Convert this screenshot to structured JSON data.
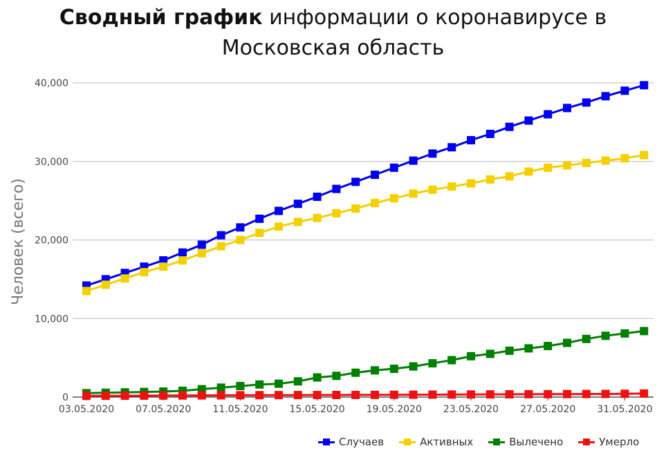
{
  "title": {
    "bold": "Сводный график",
    "line1_rest": "информации о коронавирусе в",
    "line2": "Московская область"
  },
  "chart_data": {
    "type": "line",
    "ylabel": "Человек (всего)",
    "ylim": [
      0,
      40000
    ],
    "yticks": [
      0,
      10000,
      20000,
      30000,
      40000
    ],
    "ytick_labels": [
      "0",
      "10,000",
      "20,000",
      "30,000",
      "40,000"
    ],
    "xtick_labels": [
      "03.05.2020",
      "07.05.2020",
      "11.05.2020",
      "15.05.2020",
      "19.05.2020",
      "23.05.2020",
      "27.05.2020",
      "31.05.2020"
    ],
    "x": [
      "03.05.2020",
      "04.05.2020",
      "05.05.2020",
      "06.05.2020",
      "07.05.2020",
      "08.05.2020",
      "09.05.2020",
      "10.05.2020",
      "11.05.2020",
      "12.05.2020",
      "13.05.2020",
      "14.05.2020",
      "15.05.2020",
      "16.05.2020",
      "17.05.2020",
      "18.05.2020",
      "19.05.2020",
      "20.05.2020",
      "21.05.2020",
      "22.05.2020",
      "23.05.2020",
      "24.05.2020",
      "25.05.2020",
      "26.05.2020",
      "27.05.2020",
      "28.05.2020",
      "29.05.2020",
      "30.05.2020",
      "31.05.2020",
      "01.06.2020"
    ],
    "grid": true,
    "legend_position": "bottom-right",
    "series": [
      {
        "name": "Случаев",
        "color": "#0000ee",
        "values": [
          14200,
          15000,
          15800,
          16600,
          17400,
          18400,
          19400,
          20600,
          21600,
          22700,
          23700,
          24600,
          25500,
          26500,
          27400,
          28300,
          29200,
          30100,
          31000,
          31800,
          32700,
          33500,
          34400,
          35200,
          36000,
          36800,
          37500,
          38300,
          39000,
          39700
        ]
      },
      {
        "name": "Активных",
        "color": "#f5d000",
        "values": [
          13500,
          14300,
          15100,
          15900,
          16600,
          17400,
          18300,
          19200,
          20000,
          20900,
          21700,
          22300,
          22800,
          23400,
          24000,
          24700,
          25300,
          25900,
          26400,
          26800,
          27200,
          27700,
          28100,
          28700,
          29200,
          29500,
          29800,
          30100,
          30400,
          30800
        ]
      },
      {
        "name": "Вылечено",
        "color": "#008000",
        "values": [
          500,
          550,
          600,
          650,
          700,
          800,
          1000,
          1200,
          1400,
          1600,
          1700,
          2000,
          2500,
          2700,
          3100,
          3400,
          3600,
          3900,
          4300,
          4700,
          5200,
          5500,
          5900,
          6200,
          6500,
          6900,
          7400,
          7800,
          8100,
          8400
        ]
      },
      {
        "name": "Умерло",
        "color": "#ee1111",
        "values": [
          150,
          160,
          170,
          180,
          190,
          200,
          210,
          220,
          230,
          240,
          250,
          255,
          260,
          265,
          270,
          280,
          290,
          300,
          310,
          320,
          330,
          340,
          350,
          360,
          370,
          380,
          390,
          400,
          420,
          450
        ]
      }
    ]
  }
}
